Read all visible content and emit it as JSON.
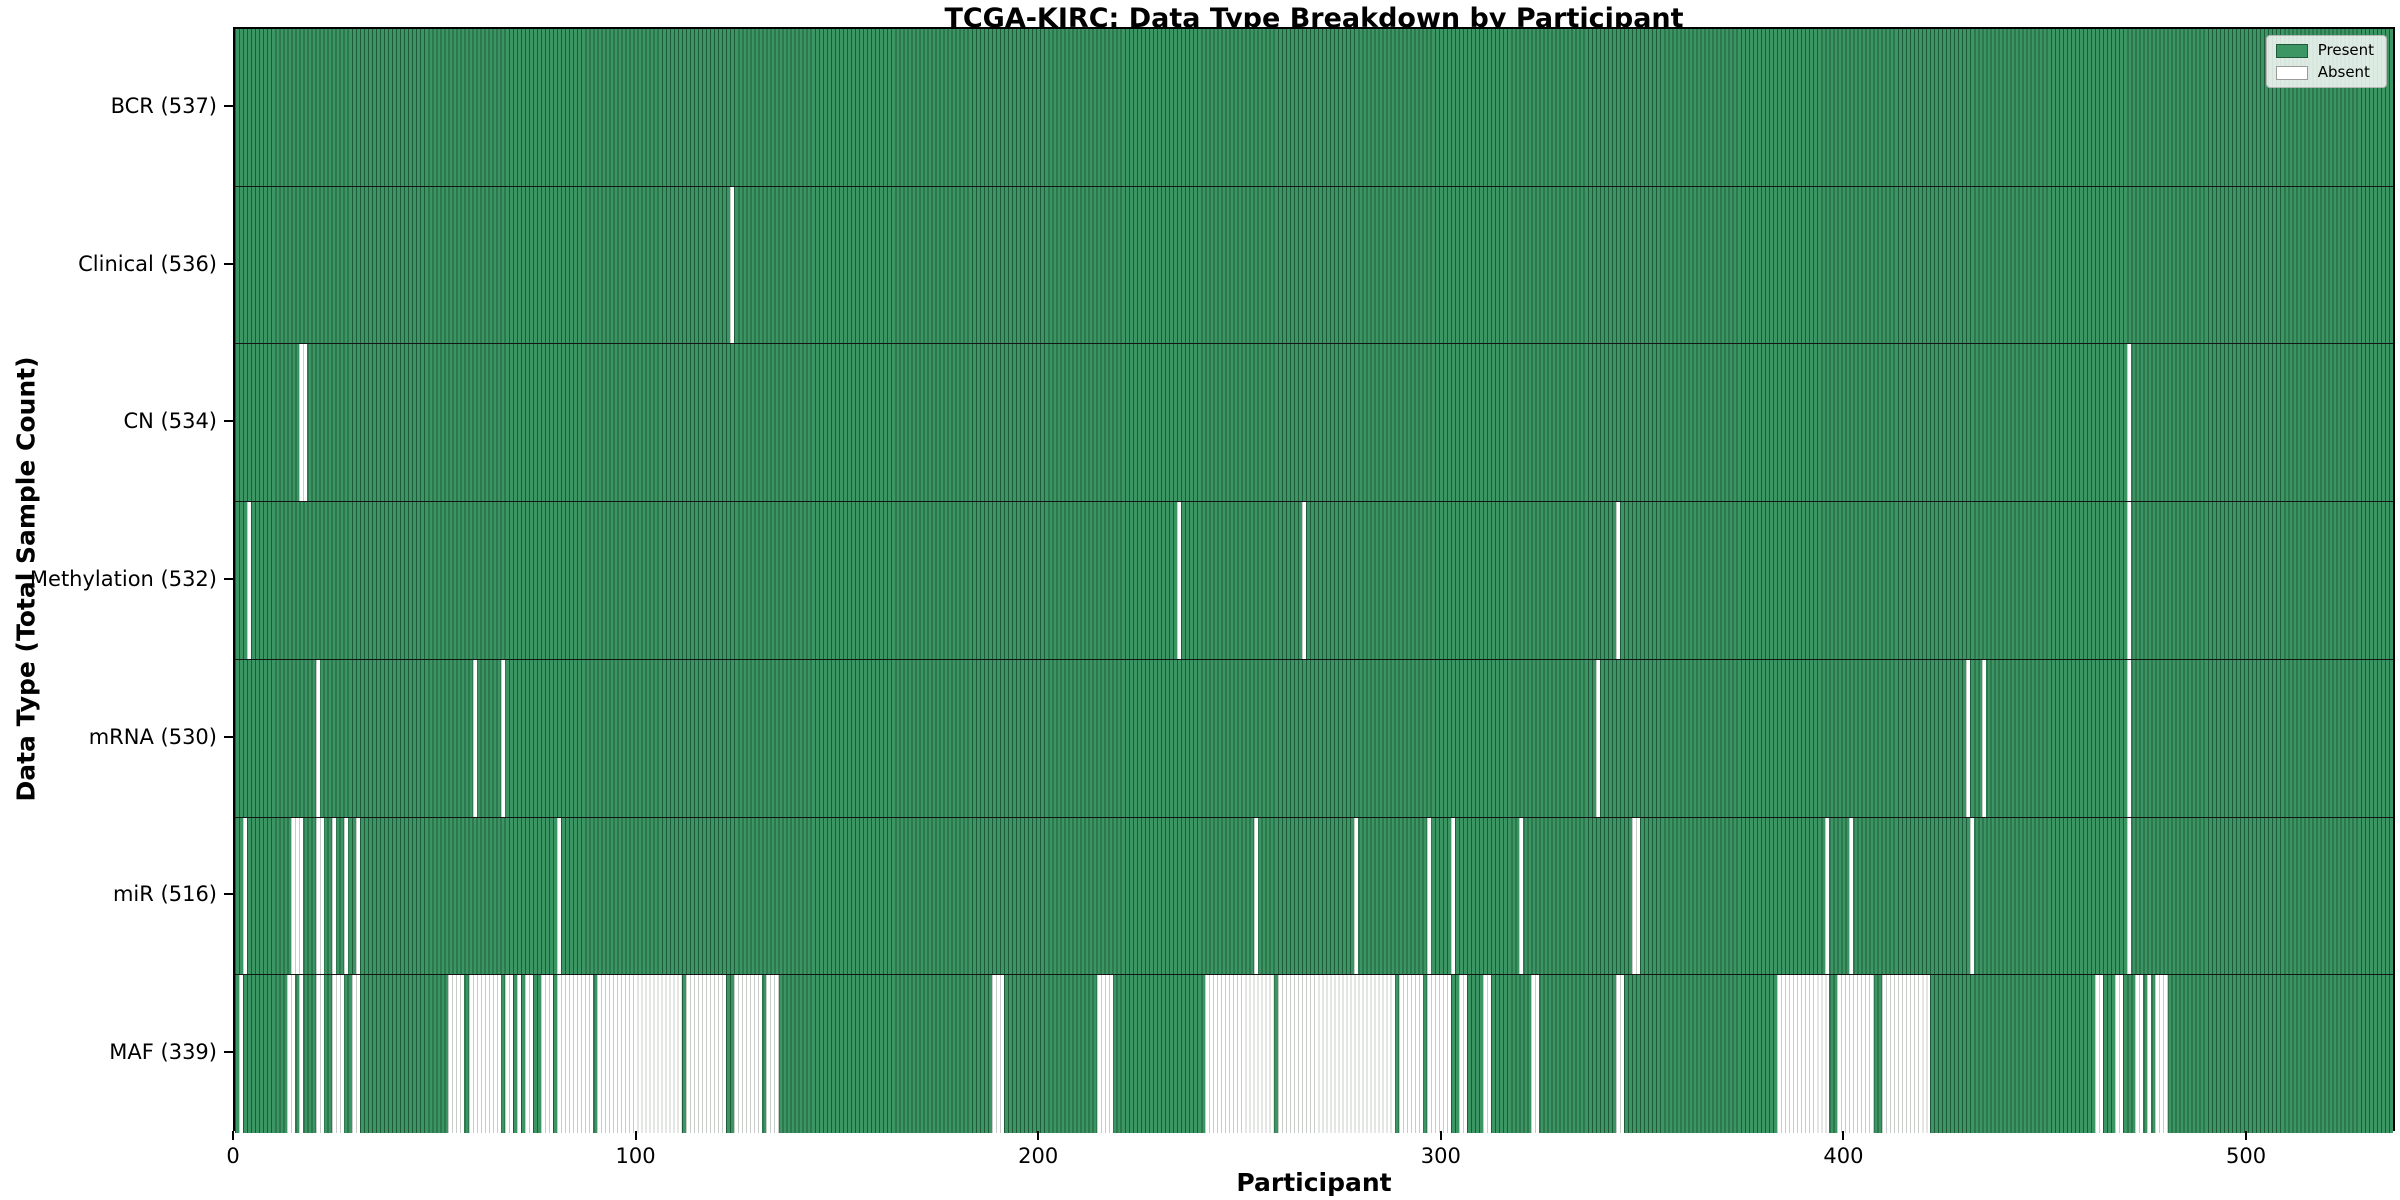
{
  "chart_data": {
    "type": "heatmap",
    "title": "TCGA-KIRC: Data Type Breakdown by Participant",
    "xlabel": "Participant",
    "ylabel": "Data Type (Total Sample Count)",
    "x_ticks": [
      "0",
      "100",
      "200",
      "300",
      "400",
      "500"
    ],
    "x_domain": [
      0,
      537
    ],
    "n_participants": 537,
    "grid": false,
    "legend": {
      "position": "upper right",
      "items": [
        {
          "label": "Present",
          "color": "#3c9664"
        },
        {
          "label": "Absent",
          "color": "#ffffff"
        }
      ]
    },
    "colors": {
      "present": "#3c9664",
      "present_edge": "#1f5a3a",
      "absent": "#ffffff",
      "absent_edge": "#c9cdc9"
    },
    "rows": [
      {
        "data_type": "BCR",
        "label": "BCR (537)",
        "total_samples": 537,
        "absent_ranges": []
      },
      {
        "data_type": "Clinical",
        "label": "Clinical (536)",
        "total_samples": 536,
        "absent_ranges": [
          [
            123,
            123
          ]
        ]
      },
      {
        "data_type": "CN",
        "label": "CN (534)",
        "total_samples": 534,
        "absent_ranges": [
          [
            16,
            17
          ],
          [
            470,
            470
          ]
        ]
      },
      {
        "data_type": "Methylation",
        "label": "Methylation (532)",
        "total_samples": 532,
        "absent_ranges": [
          [
            3,
            3
          ],
          [
            234,
            234
          ],
          [
            265,
            265
          ],
          [
            343,
            343
          ],
          [
            470,
            470
          ]
        ]
      },
      {
        "data_type": "mRNA",
        "label": "mRNA (530)",
        "total_samples": 530,
        "absent_ranges": [
          [
            20,
            20
          ],
          [
            59,
            59
          ],
          [
            66,
            66
          ],
          [
            338,
            338
          ],
          [
            430,
            430
          ],
          [
            434,
            434
          ],
          [
            470,
            470
          ]
        ]
      },
      {
        "data_type": "miR",
        "label": "miR (516)",
        "total_samples": 516,
        "absent_ranges": [
          [
            2,
            2
          ],
          [
            14,
            16
          ],
          [
            20,
            21
          ],
          [
            24,
            24
          ],
          [
            27,
            27
          ],
          [
            30,
            30
          ],
          [
            80,
            80
          ],
          [
            253,
            253
          ],
          [
            278,
            278
          ],
          [
            296,
            296
          ],
          [
            302,
            302
          ],
          [
            319,
            319
          ],
          [
            347,
            348
          ],
          [
            395,
            395
          ],
          [
            401,
            401
          ],
          [
            431,
            431
          ],
          [
            470,
            470
          ]
        ]
      },
      {
        "data_type": "MAF",
        "label": "MAF (339)",
        "total_samples": 339,
        "absent_ranges": [
          [
            1,
            1
          ],
          [
            13,
            14
          ],
          [
            16,
            16
          ],
          [
            20,
            21
          ],
          [
            24,
            26
          ],
          [
            29,
            30
          ],
          [
            53,
            56
          ],
          [
            58,
            65
          ],
          [
            67,
            68
          ],
          [
            70,
            70
          ],
          [
            72,
            73
          ],
          [
            76,
            78
          ],
          [
            80,
            88
          ],
          [
            90,
            110
          ],
          [
            112,
            121
          ],
          [
            124,
            130
          ],
          [
            132,
            134
          ],
          [
            188,
            190
          ],
          [
            214,
            217
          ],
          [
            241,
            257
          ],
          [
            259,
            287
          ],
          [
            289,
            294
          ],
          [
            296,
            301
          ],
          [
            304,
            305
          ],
          [
            310,
            311
          ],
          [
            322,
            323
          ],
          [
            343,
            344
          ],
          [
            383,
            395
          ],
          [
            398,
            406
          ],
          [
            409,
            420
          ],
          [
            462,
            463
          ],
          [
            467,
            468
          ],
          [
            472,
            473
          ],
          [
            475,
            475
          ],
          [
            477,
            479
          ]
        ]
      }
    ]
  }
}
